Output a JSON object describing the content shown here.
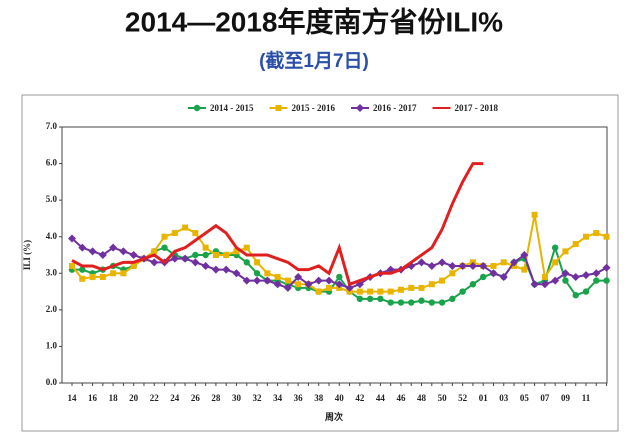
{
  "chart_data": {
    "type": "line",
    "title": "2014—2018年度南方省份ILI%",
    "subtitle": "(截至1月7日)",
    "x_label": "周次",
    "y_label": "ILI (%)",
    "categories": [
      "14",
      null,
      "16",
      null,
      "18",
      null,
      "20",
      null,
      "22",
      null,
      "24",
      null,
      "26",
      null,
      "28",
      null,
      "30",
      null,
      "32",
      null,
      "34",
      null,
      "36",
      null,
      "38",
      null,
      "40",
      null,
      "42",
      null,
      "44",
      null,
      "46",
      null,
      "48",
      null,
      "50",
      null,
      "52",
      null,
      "01",
      null,
      "03",
      null,
      "05",
      null,
      "07",
      null,
      "09",
      null,
      "11",
      null,
      null
    ],
    "series": [
      {
        "name": "2014 - 2015",
        "color": "#1aa34a",
        "marker": "circle",
        "values": [
          3.1,
          3.1,
          3.0,
          3.1,
          3.2,
          3.1,
          3.2,
          3.4,
          3.6,
          3.7,
          3.5,
          3.4,
          3.5,
          3.5,
          3.6,
          3.5,
          3.5,
          3.3,
          3.0,
          2.8,
          2.8,
          2.7,
          2.6,
          2.6,
          2.5,
          2.5,
          2.9,
          2.5,
          2.3,
          2.3,
          2.3,
          2.2,
          2.2,
          2.2,
          2.25,
          2.2,
          2.2,
          2.3,
          2.5,
          2.7,
          2.9,
          3.0,
          2.9,
          3.3,
          3.4,
          2.7,
          2.8,
          3.7,
          2.8,
          2.4,
          2.5,
          2.8,
          2.8
        ]
      },
      {
        "name": "2015 - 2016",
        "color": "#e8b400",
        "marker": "square",
        "values": [
          3.2,
          2.85,
          2.9,
          2.9,
          3.0,
          3.0,
          3.2,
          3.4,
          3.6,
          4.0,
          4.1,
          4.25,
          4.1,
          3.7,
          3.5,
          3.5,
          3.6,
          3.7,
          3.3,
          3.0,
          2.9,
          2.8,
          2.7,
          2.7,
          2.5,
          2.6,
          2.6,
          2.5,
          2.5,
          2.5,
          2.5,
          2.5,
          2.55,
          2.6,
          2.6,
          2.7,
          2.8,
          3.0,
          3.2,
          3.3,
          3.2,
          3.2,
          3.3,
          3.2,
          3.1,
          4.6,
          2.9,
          3.3,
          3.6,
          3.8,
          4.0,
          4.1,
          4.0
        ]
      },
      {
        "name": "2016 - 2017",
        "color": "#7030a0",
        "marker": "diamond",
        "values": [
          3.95,
          3.7,
          3.6,
          3.5,
          3.7,
          3.6,
          3.5,
          3.4,
          3.3,
          3.3,
          3.4,
          3.4,
          3.3,
          3.2,
          3.1,
          3.1,
          3.0,
          2.8,
          2.8,
          2.8,
          2.7,
          2.6,
          2.9,
          2.7,
          2.8,
          2.8,
          2.7,
          2.6,
          2.7,
          2.9,
          3.0,
          3.1,
          3.1,
          3.2,
          3.3,
          3.2,
          3.3,
          3.2,
          3.2,
          3.2,
          3.2,
          3.0,
          2.9,
          3.3,
          3.5,
          2.7,
          2.7,
          2.8,
          3.0,
          2.9,
          2.95,
          3.0,
          3.15
        ]
      },
      {
        "name": "2017 - 2018",
        "color": "#e02020",
        "marker": "none",
        "values": [
          3.35,
          3.2,
          3.2,
          3.1,
          3.2,
          3.3,
          3.3,
          3.4,
          3.5,
          3.3,
          3.6,
          3.7,
          3.9,
          4.1,
          4.3,
          4.1,
          3.7,
          3.5,
          3.5,
          3.5,
          3.4,
          3.3,
          3.1,
          3.1,
          3.2,
          3.0,
          3.7,
          2.7,
          2.8,
          2.9,
          3.0,
          3.0,
          3.1,
          3.3,
          3.5,
          3.7,
          4.2,
          4.9,
          5.5,
          6.0,
          6.0,
          null,
          null,
          null,
          null,
          null,
          null,
          null,
          null,
          null,
          null,
          null,
          null
        ]
      }
    ],
    "ylim": [
      0,
      7
    ],
    "yticks": [
      {
        "value": 0,
        "label": "0.0"
      },
      {
        "value": 1,
        "label": "1.0"
      },
      {
        "value": 2,
        "label": "2.0"
      },
      {
        "value": 3,
        "label": "3.0"
      },
      {
        "value": 4,
        "label": "4.0"
      },
      {
        "value": 5,
        "label": "5.0"
      },
      {
        "value": 6,
        "label": "6.0"
      },
      {
        "value": 7,
        "label": "7.0"
      }
    ],
    "legend": "top"
  }
}
